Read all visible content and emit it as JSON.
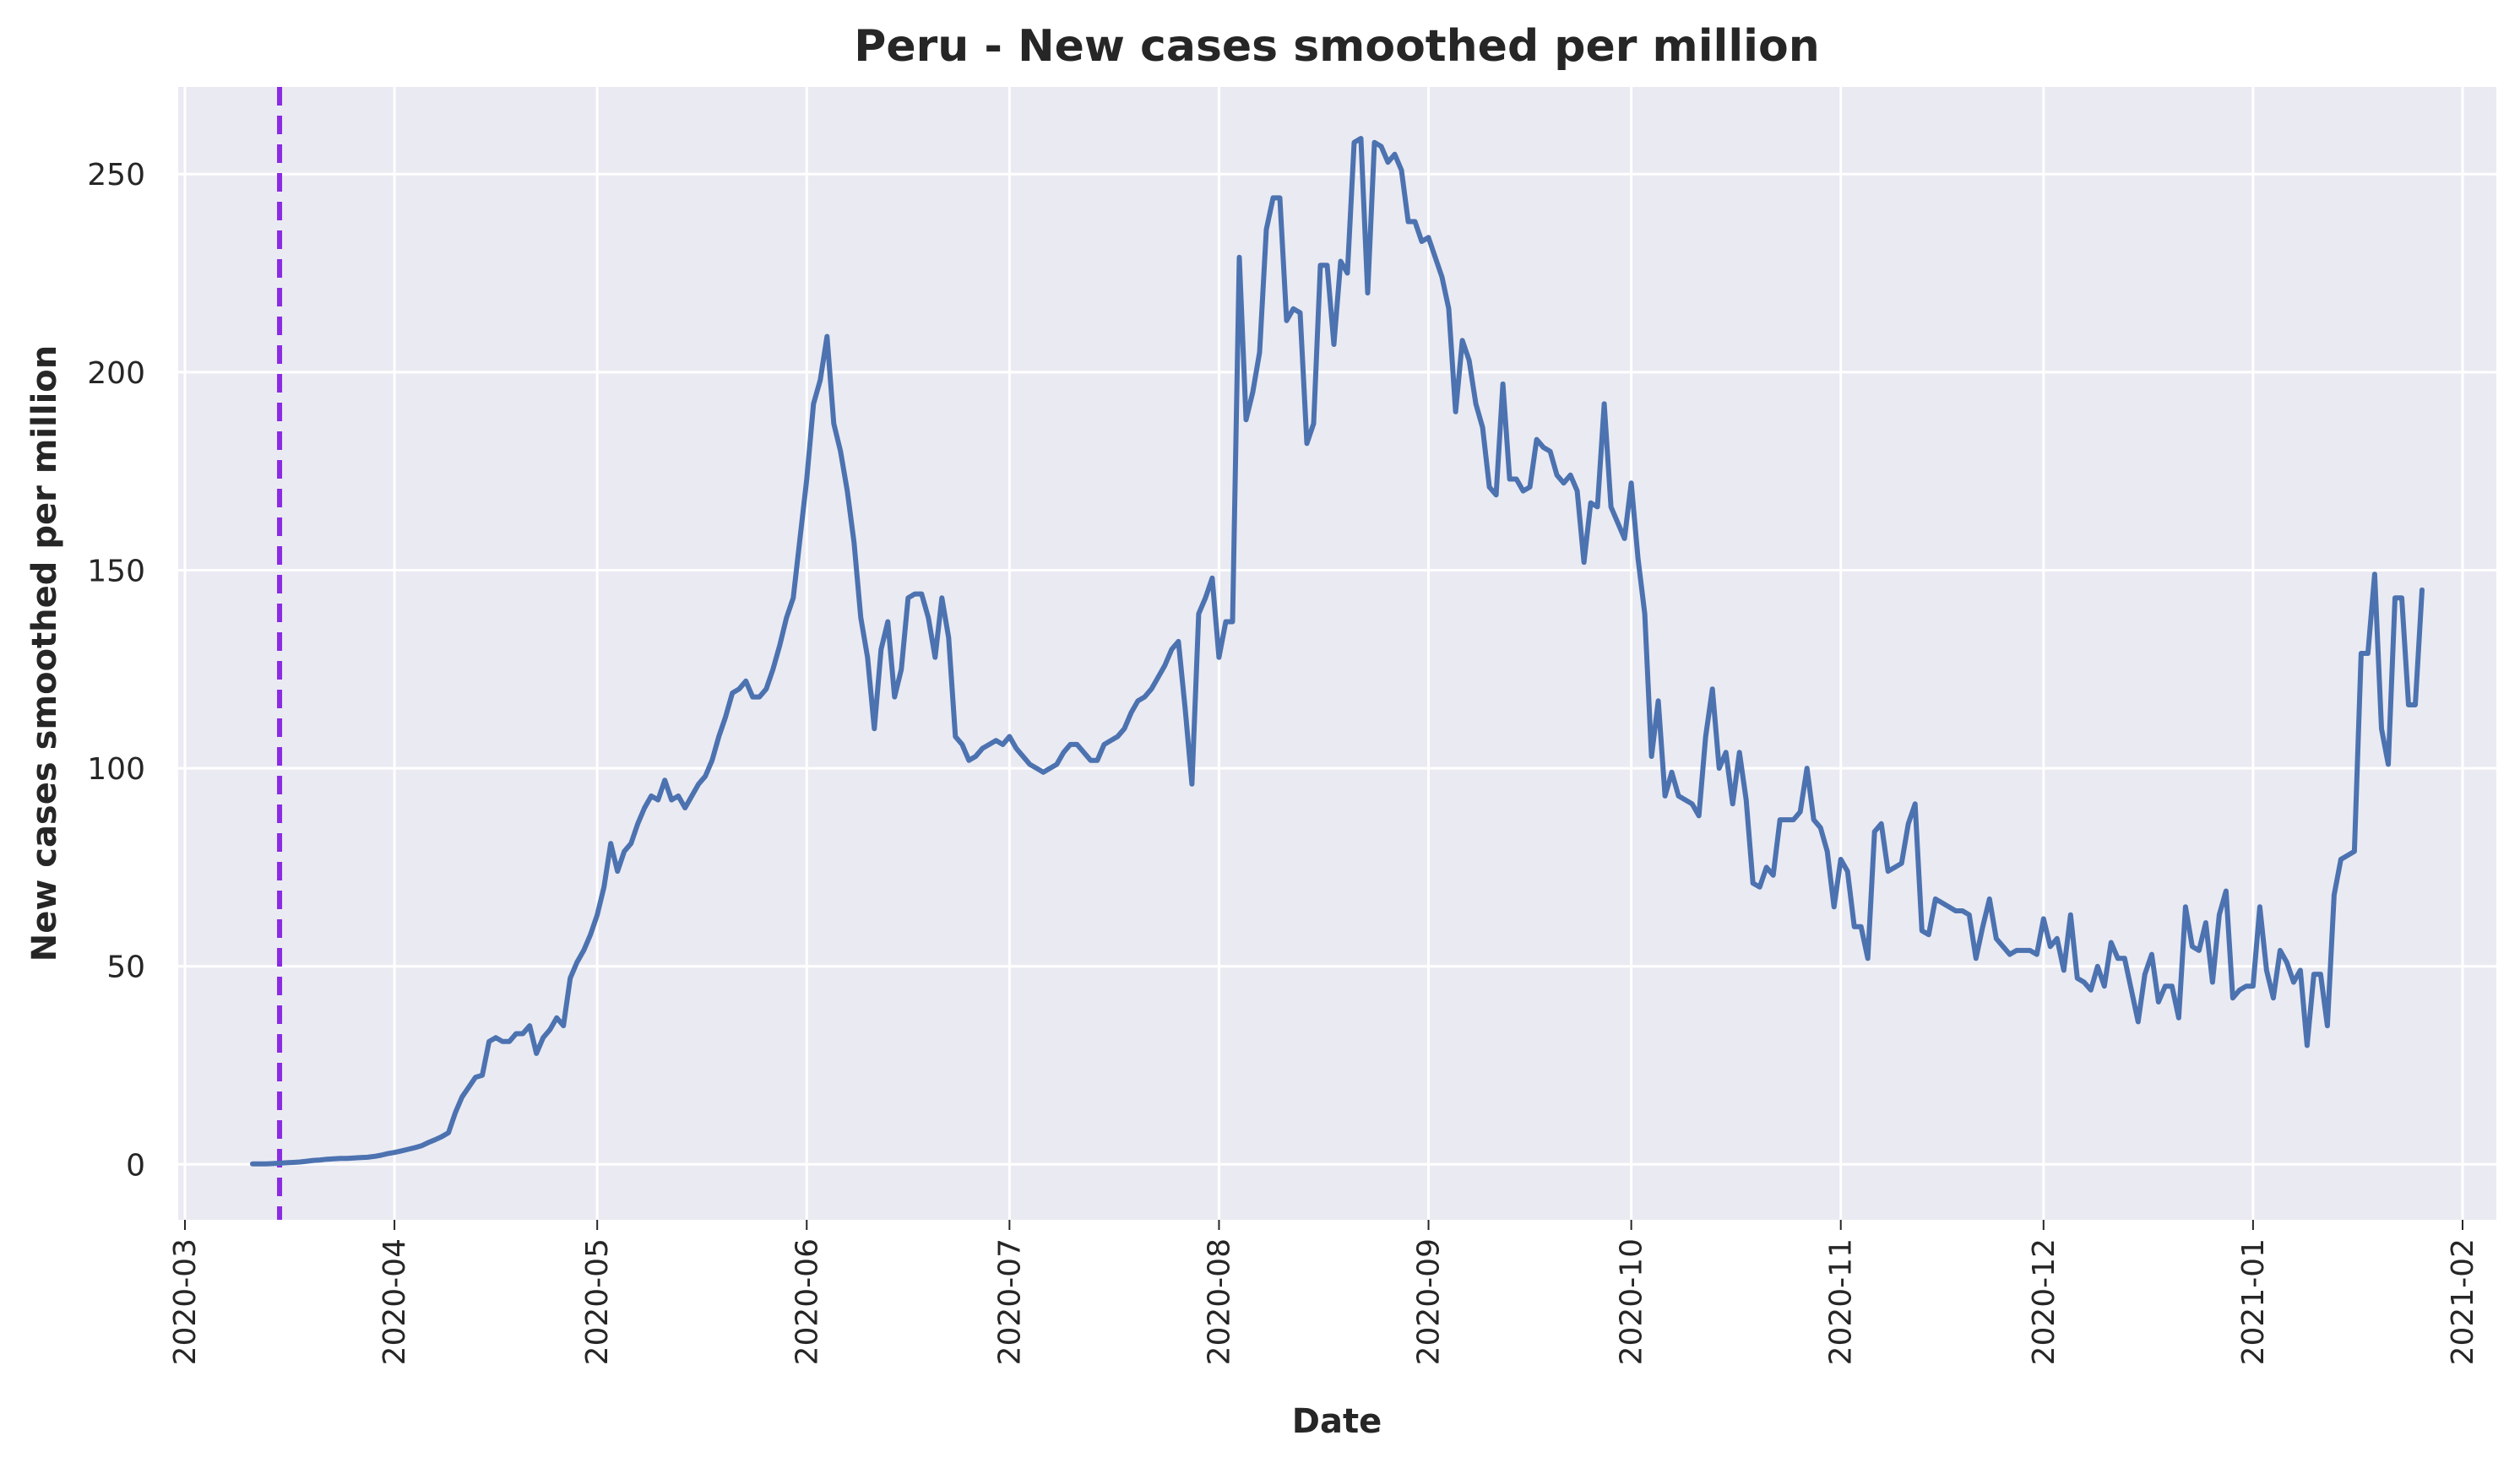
{
  "chart_data": {
    "type": "line",
    "title": "Peru - New cases smoothed per million",
    "xlabel": "Date",
    "ylabel": "New cases smoothed per million",
    "xlim": [
      "2020-02-29",
      "2021-02-06"
    ],
    "ylim": [
      -14,
      272
    ],
    "x_ticks": [
      "2020-03",
      "2020-04",
      "2020-05",
      "2020-06",
      "2020-07",
      "2020-08",
      "2020-09",
      "2020-10",
      "2020-11",
      "2020-12",
      "2021-01",
      "2021-02"
    ],
    "y_ticks": [
      0,
      50,
      100,
      150,
      200,
      250
    ],
    "grid": true,
    "colors": {
      "line": "#4c72b0",
      "marker_line": "#8a2be2",
      "background": "#eaeaf2",
      "grid": "#ffffff"
    },
    "vertical_marker": {
      "x": "2020-03-15",
      "style": "dashed"
    },
    "series": [
      {
        "start_date": "2020-03-11",
        "values": [
          0.1,
          0.1,
          0.1,
          0.2,
          0.3,
          0.4,
          0.5,
          0.6,
          0.8,
          1.0,
          1.1,
          1.3,
          1.4,
          1.5,
          1.5,
          1.6,
          1.7,
          1.8,
          2.0,
          2.3,
          2.7,
          3.0,
          3.4,
          3.8,
          4.2,
          4.7,
          5.5,
          6.2,
          7.0,
          8.0,
          13.0,
          17.0,
          19.5,
          22.0,
          22.5,
          31.0,
          32.0,
          31.0,
          31.0,
          33.0,
          33.0,
          35.0,
          28.0,
          32.0,
          34.0,
          37.0,
          35.0,
          47.0,
          51.0,
          54.0,
          58.0,
          63.0,
          70.0,
          81.0,
          74.0,
          79.0,
          81.0,
          86.0,
          90.0,
          93.0,
          92.0,
          97.0,
          92.0,
          93.0,
          90.0,
          93.0,
          96.0,
          98.0,
          102.0,
          108.0,
          113.0,
          119.0,
          120.0,
          122.0,
          118.0,
          118.0,
          120.0,
          125.0,
          131.0,
          138.0,
          143.0,
          158.0,
          173.0,
          192.0,
          198.0,
          209.0,
          187.0,
          180.0,
          170.0,
          157.0,
          138.0,
          128.0,
          110.0,
          130.0,
          137.0,
          118.0,
          125.0,
          143.0,
          144.0,
          144.0,
          138.0,
          128.0,
          143.0,
          133.0,
          108.0,
          106.0,
          102.0,
          103.0,
          105.0,
          106.0,
          107.0,
          106.0,
          108.0,
          105.0,
          103.0,
          101.0,
          100.0,
          99.0,
          100.0,
          101.0,
          104.0,
          106.0,
          106.0,
          104.0,
          102.0,
          102.0,
          106.0,
          107.0,
          108.0,
          110.0,
          114.0,
          117.0,
          118.0,
          120.0,
          123.0,
          126.0,
          130.0,
          132.0,
          115.0,
          96.0,
          139.0,
          143.0,
          148.0,
          128.0,
          137.0,
          137.0,
          229.0,
          188.0,
          195.0,
          205.0,
          236.0,
          244.0,
          244.0,
          213.0,
          216.0,
          215.0,
          182.0,
          187.0,
          227.0,
          227.0,
          207.0,
          228.0,
          225.0,
          258.0,
          259.0,
          220.0,
          258.0,
          257.0,
          253.0,
          255.0,
          251.0,
          238.0,
          238.0,
          233.0,
          234.0,
          229.0,
          224.0,
          216.0,
          190.0,
          208.0,
          203.0,
          192.0,
          186.0,
          171.0,
          169.0,
          197.0,
          173.0,
          173.0,
          170.0,
          171.0,
          183.0,
          181.0,
          180.0,
          174.0,
          172.0,
          174.0,
          170.0,
          152.0,
          167.0,
          166.0,
          192.0,
          166.0,
          162.0,
          158.0,
          172.0,
          153.0,
          139.0,
          103.0,
          117.0,
          93.0,
          99.0,
          93.0,
          92.0,
          91.0,
          88.0,
          108.0,
          120.0,
          100.0,
          104.0,
          91.0,
          104.0,
          92.0,
          71.0,
          70.0,
          75.0,
          73.0,
          87.0,
          87.0,
          87.0,
          89.0,
          100.0,
          87.0,
          85.0,
          79.0,
          65.0,
          77.0,
          74.0,
          60.0,
          60.0,
          52.0,
          84.0,
          86.0,
          74.0,
          75.0,
          76.0,
          86.0,
          91.0,
          59.0,
          58.0,
          67.0,
          66.0,
          65.0,
          64.0,
          64.0,
          63.0,
          52.0,
          60.0,
          67.0,
          57.0,
          55.0,
          53.0,
          54.0,
          54.0,
          54.0,
          53.0,
          62.0,
          55.0,
          57.0,
          49.0,
          63.0,
          47.0,
          46.0,
          44.0,
          50.0,
          45.0,
          56.0,
          52.0,
          52.0,
          44.0,
          36.0,
          48.0,
          53.0,
          41.0,
          45.0,
          45.0,
          37.0,
          65.0,
          55.0,
          54.0,
          61.0,
          46.0,
          63.0,
          69.0,
          42.0,
          44.0,
          45.0,
          45.0,
          65.0,
          49.0,
          42.0,
          54.0,
          51.0,
          46.0,
          49.0,
          30.0,
          48.0,
          48.0,
          35.0,
          68.0,
          77.0,
          78.0,
          79.0,
          129.0,
          129.0,
          149.0,
          110.0,
          101.0,
          143.0,
          143.0,
          116.0,
          116.0,
          145.0
        ]
      }
    ]
  }
}
